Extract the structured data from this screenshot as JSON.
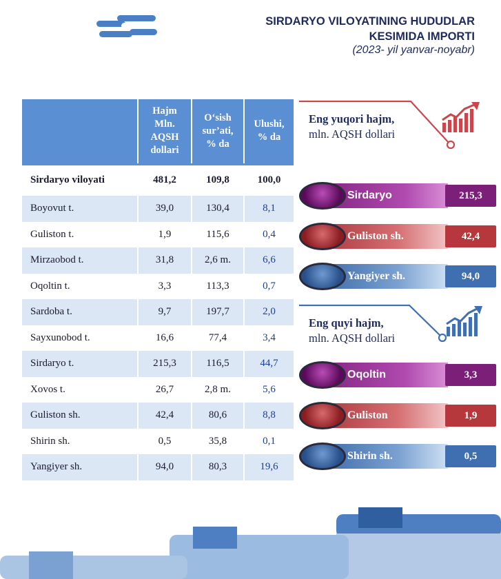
{
  "header": {
    "title_line1": "SIRDARYO VILOYATINING HUDUDLAR",
    "title_line2": "KESIMIDA IMPORTI",
    "subtitle": "(2023- yil yanvar-noyabr)"
  },
  "table": {
    "columns": [
      "",
      "Hajm Mln. AQSH dollari",
      "O‘sish sur’ati, % da",
      "Ulushi, % da"
    ],
    "col_lines": [
      [
        "Hajm",
        "Mln.",
        "AQSH",
        "dollari"
      ],
      [
        "O‘sish",
        "sur’ati,",
        "% da"
      ],
      [
        "Ulushi,",
        "% da"
      ]
    ],
    "total": {
      "name": "Sirdaryo viloyati",
      "volume": "481,2",
      "growth": "109,8",
      "share": "100,0"
    },
    "rows": [
      {
        "name": "Boyovut t.",
        "volume": "39,0",
        "growth": "130,4",
        "share": "8,1"
      },
      {
        "name": "Guliston t.",
        "volume": "1,9",
        "growth": "115,6",
        "share": "0,4"
      },
      {
        "name": "Mirzaobod t.",
        "volume": "31,8",
        "growth": "2,6 m.",
        "share": "6,6"
      },
      {
        "name": "Oqoltin t.",
        "volume": "3,3",
        "growth": "113,3",
        "share": "0,7"
      },
      {
        "name": "Sardoba t.",
        "volume": "9,7",
        "growth": "197,7",
        "share": "2,0"
      },
      {
        "name": "Sayxunobod t.",
        "volume": "16,6",
        "growth": "77,4",
        "share": "3,4"
      },
      {
        "name": "Sirdaryo t.",
        "volume": "215,3",
        "growth": "116,5",
        "share": "44,7"
      },
      {
        "name": "Xovos t.",
        "volume": "26,7",
        "growth": "2,8 m.",
        "share": "5,6"
      },
      {
        "name": "Guliston sh.",
        "volume": "42,4",
        "growth": "80,6",
        "share": "8,8"
      },
      {
        "name": "Shirin sh.",
        "volume": "0,5",
        "growth": "35,8",
        "share": "0,1"
      },
      {
        "name": "Yangiyer sh.",
        "volume": "94,0",
        "growth": "80,3",
        "share": "19,6"
      }
    ]
  },
  "top": {
    "heading_bold": "Eng yuqori hajm,",
    "heading_rest": "mln. AQSH dollari",
    "items": [
      {
        "label": "Sirdaryo",
        "value": "215,3",
        "color": "#7b1f79"
      },
      {
        "label": "Guliston sh.",
        "value": "42,4",
        "color": "#b7383c"
      },
      {
        "label": "Yangiyer sh.",
        "value": "94,0",
        "color": "#3f6fb0"
      }
    ]
  },
  "bottom": {
    "heading_bold": "Eng quyi hajm,",
    "heading_rest": "mln. AQSH dollari",
    "items": [
      {
        "label": "Oqoltin",
        "value": "3,3",
        "color": "#7b1f79"
      },
      {
        "label": "Guliston",
        "value": "1,9",
        "color": "#b7383c"
      },
      {
        "label": "Shirin sh.",
        "value": "0,5",
        "color": "#3f6fb0"
      }
    ]
  },
  "icons": [
    "chain-link-logo-icon",
    "growth-chart-red-icon",
    "growth-chart-blue-icon"
  ]
}
